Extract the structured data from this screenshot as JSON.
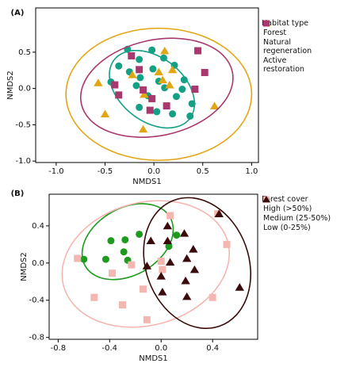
{
  "chart_data": [
    {
      "type": "scatter",
      "panel_label": "(A)",
      "xlabel": "NMDS1",
      "ylabel": "NMDS2",
      "legend_title": "Habitat type",
      "legend": "right",
      "xlim": [
        -1.21,
        1.07
      ],
      "ylim": [
        -1.02,
        1.11
      ],
      "xticks": [
        {
          "value": -1,
          "label": "-1.0"
        },
        -0.5,
        {
          "value": 0,
          "label": "0.0"
        },
        0.5,
        {
          "value": 1,
          "label": "1.0"
        }
      ],
      "yticks": [
        {
          "value": -1,
          "label": "-1.0"
        },
        -0.5,
        {
          "value": 0,
          "label": "0.0"
        },
        0.5
      ],
      "series": [
        {
          "name": "Forest",
          "color": "#14a085",
          "marker": "circle",
          "x": [
            -0.27,
            -0.15,
            -0.02,
            0.1,
            -0.36,
            -0.25,
            -0.01,
            0.21,
            -0.14,
            0.05,
            0.31,
            -0.44,
            -0.18,
            0.11,
            0.29,
            -0.06,
            0.23,
            -0.15,
            0.03,
            0.39,
            0.19,
            0.37
          ],
          "y": [
            0.54,
            0.4,
            0.53,
            0.42,
            0.31,
            0.23,
            0.27,
            0.32,
            0.15,
            0.1,
            0.12,
            0.09,
            0.04,
            0.01,
            -0.01,
            -0.1,
            -0.11,
            -0.26,
            -0.32,
            -0.21,
            -0.35,
            -0.38
          ],
          "ellipse": {
            "center": [
              -0.02,
              -0.01
            ],
            "radii": [
              0.49,
              0.44
            ],
            "angle": 38
          }
        },
        {
          "name": "Natural regeneration",
          "color": "#e2a615",
          "marker": "triangle",
          "x": [
            0.11,
            -0.57,
            -0.22,
            0.05,
            0.19,
            0.09,
            0.16,
            -0.1,
            0.62,
            -0.5,
            -0.11
          ],
          "y": [
            0.52,
            0.08,
            0.19,
            0.23,
            0.26,
            0.12,
            0.05,
            -0.08,
            -0.24,
            -0.35,
            -0.56
          ],
          "ellipse": {
            "center": [
              0.05,
              -0.08
            ],
            "radii": [
              0.95,
              0.91
            ],
            "angle": 0
          }
        },
        {
          "name": "Active restoration",
          "color": "#a8386d",
          "marker": "square",
          "x": [
            -0.23,
            0.45,
            -0.15,
            -0.4,
            -0.36,
            -0.11,
            -0.02,
            0.13,
            -0.04,
            0.42,
            0.52
          ],
          "y": [
            0.45,
            0.52,
            0.26,
            0.05,
            -0.09,
            -0.02,
            -0.14,
            -0.24,
            -0.3,
            -0.01,
            0.22
          ],
          "ellipse": {
            "center": [
              0.03,
              0.01
            ],
            "radii": [
              0.79,
              0.66
            ],
            "angle": -12
          }
        }
      ]
    },
    {
      "type": "scatter",
      "panel_label": "(B)",
      "xlabel": "NMDS1",
      "ylabel": "NMDS2",
      "legend_title": "Forest cover",
      "legend": "right",
      "xlim": [
        -0.87,
        0.75
      ],
      "ylim": [
        -0.82,
        0.74
      ],
      "xticks": [
        -0.8,
        -0.4,
        {
          "value": 0,
          "label": "0.0"
        },
        0.4
      ],
      "yticks": [
        -0.8,
        -0.4,
        {
          "value": 0,
          "label": "0.0"
        },
        0.4
      ],
      "series": [
        {
          "name": "High (>50%)",
          "color": "#1e9a1e",
          "marker": "circle",
          "x": [
            -0.17,
            -0.39,
            -0.28,
            -0.29,
            -0.43,
            -0.26,
            -0.6,
            0.06,
            0.12
          ],
          "y": [
            0.31,
            0.24,
            0.25,
            0.12,
            0.04,
            0.03,
            0.04,
            0.18,
            0.3
          ],
          "ellipse": {
            "center": [
              -0.26,
              0.23
            ],
            "radii": [
              0.38,
              0.36
            ],
            "angle": -30
          }
        },
        {
          "name": "Medium (25-50%)",
          "color": "#f4b6b1",
          "marker": "square",
          "x": [
            0.07,
            0.44,
            -0.65,
            -0.38,
            -0.52,
            -0.23,
            0.0,
            -0.14,
            -0.3,
            -0.11,
            0.01,
            0.4,
            0.51
          ],
          "y": [
            0.51,
            0.53,
            0.05,
            -0.11,
            -0.37,
            -0.02,
            0.02,
            -0.28,
            -0.45,
            -0.61,
            -0.07,
            -0.37,
            0.2
          ],
          "ellipse": {
            "center": [
              -0.12,
              -0.01
            ],
            "radii": [
              0.66,
              0.66
            ],
            "angle": -15
          }
        },
        {
          "name": "Low (0-25%)",
          "color": "#3b0a0a",
          "marker": "triangle",
          "x": [
            0.45,
            0.05,
            0.18,
            -0.08,
            0.05,
            0.25,
            0.2,
            0.07,
            -0.11,
            0.26,
            0.0,
            0.19,
            0.01,
            0.2,
            0.61
          ],
          "y": [
            0.53,
            0.4,
            0.32,
            0.24,
            0.24,
            0.15,
            0.05,
            0.01,
            -0.03,
            -0.07,
            -0.14,
            -0.19,
            -0.31,
            -0.36,
            -0.26
          ],
          "ellipse": {
            "center": [
              0.28,
              0.0
            ],
            "radii": [
              0.4,
              0.72
            ],
            "angle": -20
          }
        }
      ]
    }
  ]
}
